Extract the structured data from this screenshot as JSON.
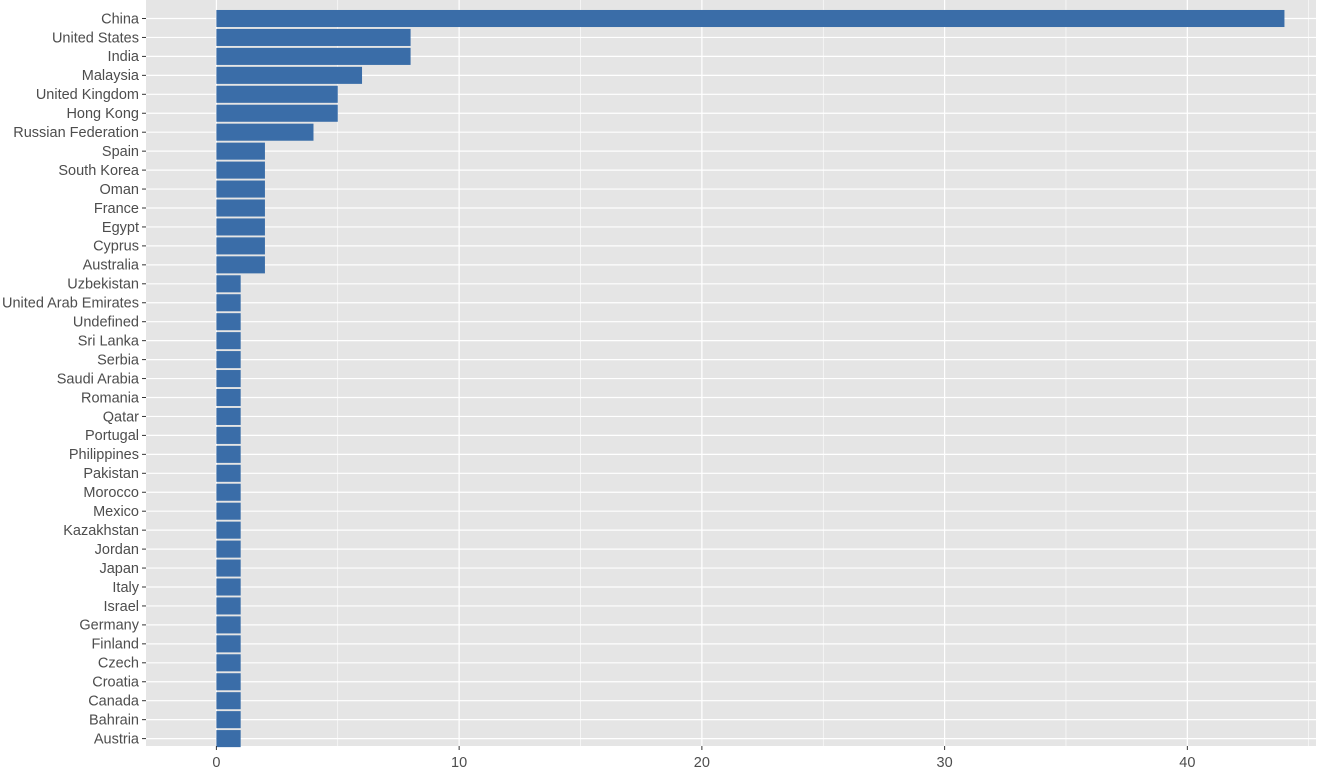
{
  "chart_data": {
    "type": "bar",
    "orientation": "horizontal",
    "title": "",
    "xlabel": "",
    "ylabel": "",
    "xlim": [
      -2.9,
      45.3
    ],
    "x_ticks": [
      0,
      10,
      20,
      30,
      40
    ],
    "grid": true,
    "bar_color": "#3A6DA8",
    "panel_color": "#E5E5E5",
    "grid_color": "#FFFFFF",
    "categories": [
      "China",
      "United States",
      "India",
      "Malaysia",
      "United Kingdom",
      "Hong Kong",
      "Russian Federation",
      "Spain",
      "South Korea",
      "Oman",
      "France",
      "Egypt",
      "Cyprus",
      "Australia",
      "Uzbekistan",
      "United Arab Emirates",
      "Undefined",
      "Sri Lanka",
      "Serbia",
      "Saudi Arabia",
      "Romania",
      "Qatar",
      "Portugal",
      "Philippines",
      "Pakistan",
      "Morocco",
      "Mexico",
      "Kazakhstan",
      "Jordan",
      "Japan",
      "Italy",
      "Israel",
      "Germany",
      "Finland",
      "Czech",
      "Croatia",
      "Canada",
      "Bahrain",
      "Austria"
    ],
    "values": [
      44,
      8,
      8,
      6,
      5,
      5,
      4,
      2,
      2,
      2,
      2,
      2,
      2,
      2,
      1,
      1,
      1,
      1,
      1,
      1,
      1,
      1,
      1,
      1,
      1,
      1,
      1,
      1,
      1,
      1,
      1,
      1,
      1,
      1,
      1,
      1,
      1,
      1,
      1
    ]
  }
}
